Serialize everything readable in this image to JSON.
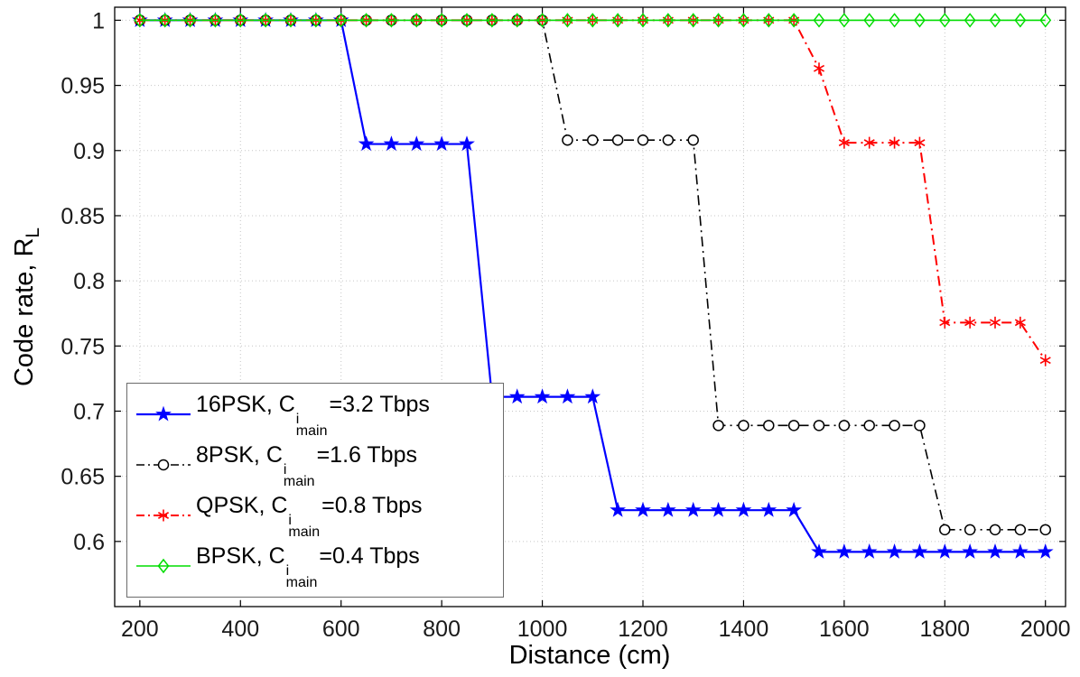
{
  "chart_data": {
    "type": "line",
    "title": "",
    "xlabel": "Distance (cm)",
    "ylabel_prefix": "Code rate, R",
    "ylabel_sub": "L",
    "xlim": [
      150,
      2040
    ],
    "ylim": [
      0.55,
      1.01
    ],
    "grid": true,
    "legend_position": "lower-left",
    "xticks": [
      200,
      400,
      600,
      800,
      1000,
      1200,
      1400,
      1600,
      1800,
      2000
    ],
    "xtick_labels": [
      "200",
      "400",
      "600",
      "800",
      "1000",
      "1200",
      "1400",
      "1600",
      "1800",
      "2000"
    ],
    "yticks": [
      0.6,
      0.65,
      0.7,
      0.75,
      0.8,
      0.85,
      0.9,
      0.95,
      1
    ],
    "ytick_labels": [
      "0.6",
      "0.65",
      "0.7",
      "0.75",
      "0.8",
      "0.85",
      "0.9",
      "0.95",
      "1"
    ],
    "x": [
      200,
      250,
      300,
      350,
      400,
      450,
      500,
      550,
      600,
      650,
      700,
      750,
      800,
      850,
      900,
      950,
      1000,
      1050,
      1100,
      1150,
      1200,
      1250,
      1300,
      1350,
      1400,
      1450,
      1500,
      1550,
      1600,
      1650,
      1700,
      1750,
      1800,
      1850,
      1900,
      1950,
      2000
    ],
    "series": [
      {
        "name": "16PSK",
        "legend_prefix": "16PSK, C",
        "legend_sup": "i",
        "legend_sub": "main",
        "legend_suffix": "=3.2 Tbps",
        "color": "#0000ff",
        "line_style": "solid",
        "line_width": 2.2,
        "marker": "star",
        "values": [
          1,
          1,
          1,
          1,
          1,
          1,
          1,
          1,
          1,
          0.905,
          0.905,
          0.905,
          0.905,
          0.905,
          0.711,
          0.711,
          0.711,
          0.711,
          0.711,
          0.624,
          0.624,
          0.624,
          0.624,
          0.624,
          0.624,
          0.624,
          0.624,
          0.592,
          0.592,
          0.592,
          0.592,
          0.592,
          0.592,
          0.592,
          0.592,
          0.592,
          0.592
        ]
      },
      {
        "name": "8PSK",
        "legend_prefix": "8PSK, C",
        "legend_sup": "i",
        "legend_sub": "main",
        "legend_suffix": "=1.6 Tbps",
        "color": "#000000",
        "line_style": "dashdot",
        "line_width": 1.6,
        "marker": "circle",
        "values": [
          1,
          1,
          1,
          1,
          1,
          1,
          1,
          1,
          1,
          1,
          1,
          1,
          1,
          1,
          1,
          1,
          1,
          0.908,
          0.908,
          0.908,
          0.908,
          0.908,
          0.908,
          0.689,
          0.689,
          0.689,
          0.689,
          0.689,
          0.689,
          0.689,
          0.689,
          0.689,
          0.609,
          0.609,
          0.609,
          0.609,
          0.609
        ]
      },
      {
        "name": "QPSK",
        "legend_prefix": "QPSK, C",
        "legend_sup": "i",
        "legend_sub": "main",
        "legend_suffix": "=0.8 Tbps",
        "color": "#ff0000",
        "line_style": "dashdot",
        "line_width": 2,
        "marker": "asterisk",
        "values": [
          1,
          1,
          1,
          1,
          1,
          1,
          1,
          1,
          1,
          1,
          1,
          1,
          1,
          1,
          1,
          1,
          1,
          1,
          1,
          1,
          1,
          1,
          1,
          1,
          1,
          1,
          1,
          0.963,
          0.906,
          0.906,
          0.906,
          0.906,
          0.768,
          0.768,
          0.768,
          0.768,
          0.739
        ]
      },
      {
        "name": "BPSK",
        "legend_prefix": "BPSK, C",
        "legend_sup": "i",
        "legend_sub": "main",
        "legend_suffix": "=0.4 Tbps",
        "color": "#00dd00",
        "line_style": "solid",
        "line_width": 1.6,
        "marker": "diamond",
        "values": [
          1,
          1,
          1,
          1,
          1,
          1,
          1,
          1,
          1,
          1,
          1,
          1,
          1,
          1,
          1,
          1,
          1,
          1,
          1,
          1,
          1,
          1,
          1,
          1,
          1,
          1,
          1,
          1,
          1,
          1,
          1,
          1,
          1,
          1,
          1,
          1,
          1
        ]
      }
    ]
  }
}
